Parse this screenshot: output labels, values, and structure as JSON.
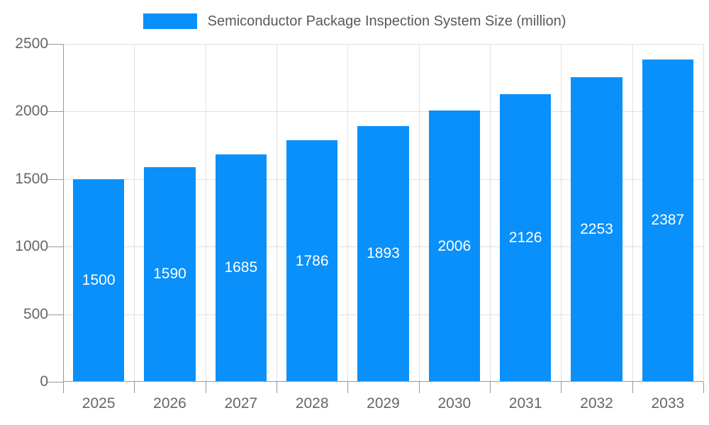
{
  "legend": {
    "label": "Semiconductor Package Inspection System Size (million)"
  },
  "chart_data": {
    "type": "bar",
    "title": "Semiconductor Package Inspection System Size (million)",
    "categories": [
      "2025",
      "2026",
      "2027",
      "2028",
      "2029",
      "2030",
      "2031",
      "2032",
      "2033"
    ],
    "values": [
      1500,
      1590,
      1685,
      1786,
      1893,
      2006,
      2126,
      2253,
      2387
    ],
    "xlabel": "",
    "ylabel": "",
    "ylim": [
      0,
      2500
    ],
    "yticks": [
      0,
      500,
      1000,
      1500,
      2000,
      2500
    ],
    "grid": true,
    "legend_position": "top",
    "value_label_position": "inside-center",
    "colors": {
      "bar": "#0a90fa",
      "grid": "#e0e0e0",
      "axis": "#999999",
      "axis_label": "#666666",
      "legend_text": "#595959",
      "value_label": "#ffffff",
      "background": "#ffffff"
    }
  }
}
